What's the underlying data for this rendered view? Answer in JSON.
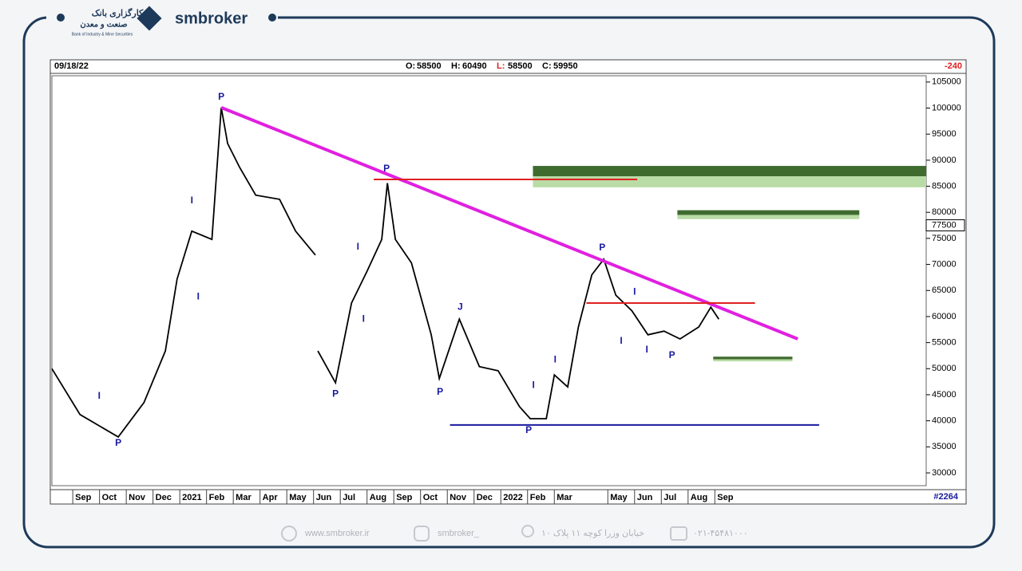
{
  "brand": {
    "logo_fa_1": "کارگزاری بانک",
    "logo_fa_2": "صنعت و معدن",
    "logo_en": "Bank of Industry & Mine Securities",
    "name": "smbroker"
  },
  "chart_data": {
    "type": "line",
    "date": "09/18/22",
    "ohlc": [
      {
        "label": "O:",
        "value": 58500
      },
      {
        "label": "H:",
        "value": 60490
      },
      {
        "label": "L:",
        "value": 58500
      },
      {
        "label": "C:",
        "value": 59950
      }
    ],
    "change": -240,
    "code": "#2264",
    "color": "#000000",
    "x": [
      -0.78,
      0.27,
      1.7,
      2.66,
      3.46,
      3.9,
      4.45,
      5.2,
      5.55,
      5.79,
      6.24,
      6.84,
      7.73,
      8.33,
      9.07,
      null,
      9.16,
      9.82,
      10.42,
      11.0,
      11.55,
      11.76,
      12.06,
      12.66,
      13.4,
      13.7,
      14.45,
      15.2,
      15.9,
      16.7,
      17.1,
      17.7,
      18.0,
      18.5,
      18.9,
      19.4,
      19.85,
      20.3,
      20.9,
      21.5,
      22.1,
      22.7,
      23.4,
      23.85,
      24.15
    ],
    "values": [
      50000,
      41200,
      36900,
      43500,
      53400,
      67200,
      76400,
      74800,
      100100,
      93200,
      88600,
      83300,
      82500,
      76400,
      71800,
      null,
      53400,
      47300,
      62600,
      68700,
      74800,
      85600,
      74800,
      70300,
      56500,
      48100,
      59500,
      50400,
      49600,
      42700,
      40400,
      40400,
      48800,
      46500,
      58000,
      68000,
      71000,
      64100,
      61100,
      56500,
      57200,
      55700,
      58000,
      61800,
      59500
    ],
    "xlim": [
      -0.78,
      31.9
    ],
    "xticks": [
      {
        "value": 0,
        "label": "Sep"
      },
      {
        "value": 1,
        "label": "Oct"
      },
      {
        "value": 2,
        "label": "Nov"
      },
      {
        "value": 3,
        "label": "Dec"
      },
      {
        "value": 4,
        "label": "2021"
      },
      {
        "value": 5,
        "label": "Feb"
      },
      {
        "value": 6,
        "label": "Mar"
      },
      {
        "value": 7,
        "label": "Apr"
      },
      {
        "value": 8,
        "label": "May"
      },
      {
        "value": 9,
        "label": "Jun"
      },
      {
        "value": 10,
        "label": "Jul"
      },
      {
        "value": 11,
        "label": "Aug"
      },
      {
        "value": 12,
        "label": "Sep"
      },
      {
        "value": 13,
        "label": "Oct"
      },
      {
        "value": 14,
        "label": "Nov"
      },
      {
        "value": 15,
        "label": "Dec"
      },
      {
        "value": 16,
        "label": "2022"
      },
      {
        "value": 17,
        "label": "Feb"
      },
      {
        "value": 18,
        "label": "Mar"
      },
      {
        "value": 20,
        "label": "May"
      },
      {
        "value": 21,
        "label": "Jun"
      },
      {
        "value": 22,
        "label": "Jul"
      },
      {
        "value": 23,
        "label": "Aug"
      },
      {
        "value": 24,
        "label": "Sep"
      }
    ],
    "ylim": [
      27550,
      106200
    ],
    "yticks": [
      30000,
      35000,
      40000,
      45000,
      50000,
      55000,
      60000,
      65000,
      70000,
      75000,
      80000,
      85000,
      90000,
      95000,
      100000,
      105000
    ],
    "highlight_tick": 77500,
    "lines": [
      {
        "color": "#e020e0",
        "x": [
          5.55,
          27.1
        ],
        "y": [
          100100,
          55700
        ]
      },
      {
        "color": "#e02020",
        "x": [
          11.25,
          21.1
        ],
        "y": [
          86300,
          86300
        ]
      },
      {
        "color": "#e02020",
        "x": [
          19.2,
          25.5
        ],
        "y": [
          62600,
          62600
        ]
      },
      {
        "color": "#1a1aa0",
        "x": [
          14.1,
          27.9
        ],
        "y": [
          39200,
          39200
        ]
      }
    ],
    "zones": [
      {
        "x": [
          17.2,
          31.9
        ],
        "top": 88900,
        "mid": 86900,
        "bottom": 84800
      },
      {
        "x": [
          22.6,
          29.4
        ],
        "top": 80400,
        "mid": 79500,
        "bottom": 78700
      },
      {
        "x": [
          23.94,
          26.9
        ],
        "top": 52300,
        "mid": 51800,
        "bottom": 51400
      }
    ],
    "annotations": [
      {
        "text": "P",
        "x": 5.55,
        "y": 102100
      },
      {
        "text": "I",
        "x": 4.45,
        "y": 82200
      },
      {
        "text": "I",
        "x": 4.69,
        "y": 63800
      },
      {
        "text": "I",
        "x": 0.99,
        "y": 44700
      },
      {
        "text": "P",
        "x": 1.7,
        "y": 35700
      },
      {
        "text": "P",
        "x": 11.73,
        "y": 88300
      },
      {
        "text": "I",
        "x": 10.66,
        "y": 73300
      },
      {
        "text": "I",
        "x": 10.87,
        "y": 59500
      },
      {
        "text": "P",
        "x": 9.82,
        "y": 45100
      },
      {
        "text": "J",
        "x": 14.48,
        "y": 61800
      },
      {
        "text": "P",
        "x": 13.73,
        "y": 45500
      },
      {
        "text": "I",
        "x": 17.22,
        "y": 46800
      },
      {
        "text": "I",
        "x": 18.03,
        "y": 51700
      },
      {
        "text": "P",
        "x": 17.04,
        "y": 38100
      },
      {
        "text": "P",
        "x": 19.79,
        "y": 73200
      },
      {
        "text": "I",
        "x": 21.0,
        "y": 64700
      },
      {
        "text": "I",
        "x": 20.5,
        "y": 55300
      },
      {
        "text": "I",
        "x": 21.46,
        "y": 53600
      },
      {
        "text": "P",
        "x": 22.4,
        "y": 52500
      }
    ]
  },
  "footer": {
    "site": "www.smbroker.ir",
    "instagram": "smbroker_",
    "address": "خیابان وزرا کوچه ۱۱ پلاک ۱۰",
    "phone": "۰۲۱-۴۵۴۸۱۰۰۰"
  }
}
